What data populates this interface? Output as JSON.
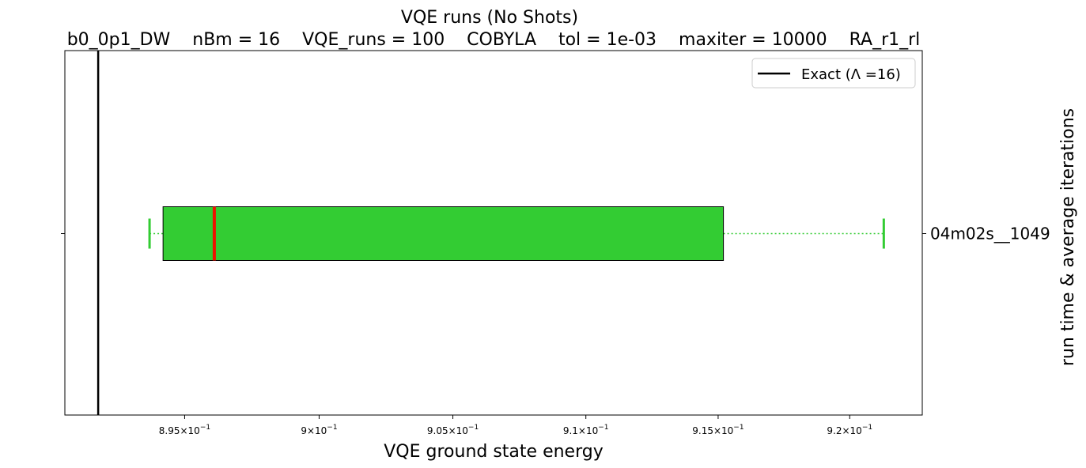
{
  "chart_data": {
    "type": "boxplot",
    "orientation": "horizontal",
    "title": "VQE runs (No Shots)",
    "subtitle": "b0_0p1_DW    nBm = 16    VQE_runs = 100    COBYLA    tol = 1e-03    maxiter = 10000    RA_r1_rl",
    "xlabel": "VQE ground state energy",
    "ylabel": "run time & average iterations",
    "x_scale": "log",
    "xlim": [
      0.89057,
      0.92277
    ],
    "x_ticks": [
      {
        "value": 0.895,
        "mantissa": "8.95",
        "base": "10",
        "exp": "−1"
      },
      {
        "value": 0.9,
        "mantissa": "9",
        "base": "10",
        "exp": "−1"
      },
      {
        "value": 0.905,
        "mantissa": "9.05",
        "base": "10",
        "exp": "−1"
      },
      {
        "value": 0.91,
        "mantissa": "9.1",
        "base": "10",
        "exp": "−1"
      },
      {
        "value": 0.915,
        "mantissa": "9.15",
        "base": "10",
        "exp": "−1"
      },
      {
        "value": 0.92,
        "mantissa": "9.2",
        "base": "10",
        "exp": "−1"
      }
    ],
    "categories": [
      "04m02s__1049"
    ],
    "boxes": [
      {
        "category": "04m02s__1049",
        "whisker_low": 0.8937,
        "q1": 0.8942,
        "median": 0.8961,
        "q3": 0.9152,
        "whisker_high": 0.9213,
        "box_color": "#33cc33",
        "median_color": "#ee1100",
        "whisker_color": "#33cc33"
      }
    ],
    "reference_line": {
      "x": 0.8918,
      "color": "#000000",
      "label": "Exact (Λ =16)"
    },
    "legend": {
      "placement": "top-right",
      "entries": [
        "Exact (Λ =16)"
      ]
    },
    "grid": false
  }
}
